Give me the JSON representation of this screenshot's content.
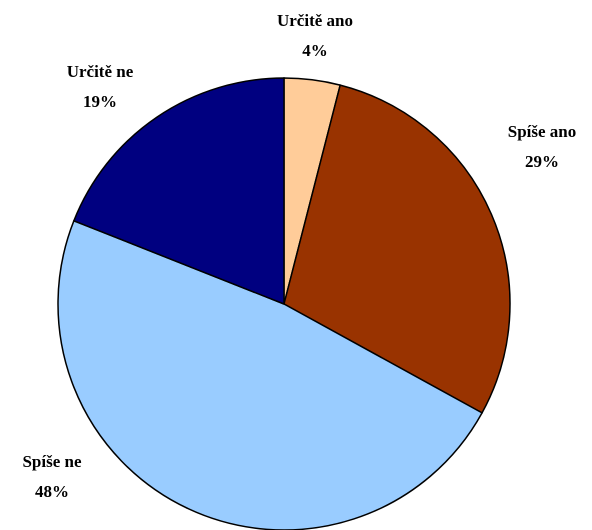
{
  "chart_data": {
    "type": "pie",
    "categories": [
      "Určitě ano",
      "Spíše ano",
      "Spíše ne",
      "Určitě ne"
    ],
    "values": [
      4,
      29,
      48,
      19
    ],
    "value_labels": [
      "4%",
      "29%",
      "48%",
      "19%"
    ],
    "colors": [
      "#FFCC99",
      "#993300",
      "#99CCFF",
      "#000080"
    ]
  }
}
